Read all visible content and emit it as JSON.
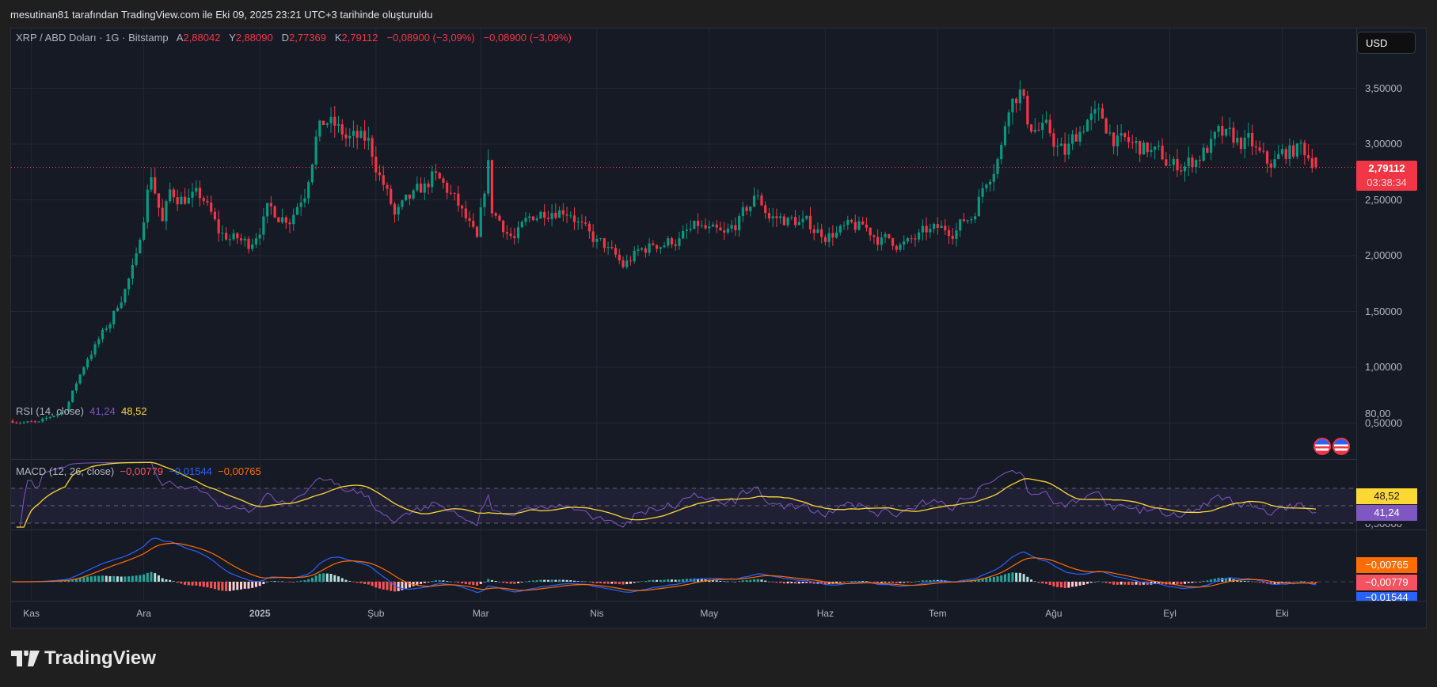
{
  "header": {
    "attribution": "mesutinan81 tarafından TradingView.com ile Eki 09, 2025 23:21 UTC+3 tarihinde oluşturuldu"
  },
  "legend": {
    "symbol": "XRP / ABD Doları · 1G · Bitstamp",
    "o_label": "A",
    "o": "2,88042",
    "h_label": "Y",
    "h": "2,88090",
    "l_label": "D",
    "l": "2,77369",
    "c_label": "K",
    "c": "2,79112",
    "change": "−0,08900 (−3,09%)",
    "change2": "−0,08900 (−3,09%)"
  },
  "currency_button": "USD",
  "price_axis": [
    "3,50000",
    "3,00000",
    "2,50000",
    "2,00000",
    "1,50000",
    "1,00000",
    "0,50000"
  ],
  "price_tag": {
    "price": "2,79112",
    "countdown": "03:38:34"
  },
  "rsi": {
    "title": "RSI (14, close)",
    "value": "41,24",
    "ma": "48,52",
    "axis": "80,00"
  },
  "macd": {
    "title": "MACD (12, 26, close)",
    "hist": "−0,00779",
    "macd": "−0,01544",
    "signal": "−0,00765",
    "axis_clipped": "0,50000"
  },
  "time_axis": [
    "Kas",
    "Ara",
    "2025",
    "Şub",
    "Mar",
    "Nis",
    "May",
    "Haz",
    "Tem",
    "Ağu",
    "Eyl",
    "Eki"
  ],
  "brand": "TradingView",
  "colors": {
    "up": "#089981",
    "down": "#f23645",
    "rsi": "#7e57c2",
    "rsi_ma": "#fdd835",
    "macd": "#2962ff",
    "signal": "#ff6d00"
  },
  "chart_data": {
    "type": "candlestick",
    "title": "XRP / ABD Doları · 1G · Bitstamp",
    "ylim": [
      0.3,
      3.85
    ],
    "month_start_day": [
      5,
      35,
      66,
      97,
      125,
      156,
      186,
      217,
      247,
      278,
      309,
      339
    ],
    "close_anchors": [
      [
        0,
        0.52
      ],
      [
        7,
        0.5
      ],
      [
        14,
        0.62
      ],
      [
        20,
        1.09
      ],
      [
        26,
        1.4
      ],
      [
        33,
        1.95
      ],
      [
        36,
        2.6
      ],
      [
        37,
        2.75
      ],
      [
        40,
        2.3
      ],
      [
        42,
        2.55
      ],
      [
        51,
        2.5
      ],
      [
        55,
        2.2
      ],
      [
        63,
        2.1
      ],
      [
        68,
        2.4
      ],
      [
        74,
        2.35
      ],
      [
        78,
        2.6
      ],
      [
        81,
        3.1
      ],
      [
        84,
        3.2
      ],
      [
        89,
        3.05
      ],
      [
        95,
        3.0
      ],
      [
        99,
        2.65
      ],
      [
        102,
        2.35
      ],
      [
        110,
        2.6
      ],
      [
        112,
        2.7
      ],
      [
        117,
        2.55
      ],
      [
        122,
        2.25
      ],
      [
        124,
        2.1
      ],
      [
        127,
        2.8
      ],
      [
        128,
        2.4
      ],
      [
        134,
        2.15
      ],
      [
        139,
        2.35
      ],
      [
        144,
        2.45
      ],
      [
        149,
        2.42
      ],
      [
        154,
        2.15
      ],
      [
        158,
        2.08
      ],
      [
        163,
        1.9
      ],
      [
        166,
        2.0
      ],
      [
        171,
        2.1
      ],
      [
        178,
        2.15
      ],
      [
        183,
        2.25
      ],
      [
        190,
        2.15
      ],
      [
        195,
        2.35
      ],
      [
        199,
        2.55
      ],
      [
        202,
        2.35
      ],
      [
        210,
        2.3
      ],
      [
        217,
        2.2
      ],
      [
        227,
        2.25
      ],
      [
        232,
        2.15
      ],
      [
        239,
        2.1
      ],
      [
        244,
        2.2
      ],
      [
        251,
        2.25
      ],
      [
        256,
        2.35
      ],
      [
        260,
        2.7
      ],
      [
        264,
        2.98
      ],
      [
        266,
        3.4
      ],
      [
        269,
        3.5
      ],
      [
        271,
        3.2
      ],
      [
        276,
        3.1
      ],
      [
        281,
        2.9
      ],
      [
        287,
        3.25
      ],
      [
        291,
        3.2
      ],
      [
        296,
        3.0
      ],
      [
        303,
        2.95
      ],
      [
        310,
        2.8
      ],
      [
        315,
        2.85
      ],
      [
        322,
        3.05
      ],
      [
        330,
        3.0
      ],
      [
        335,
        2.8
      ],
      [
        340,
        2.92
      ],
      [
        344,
        2.96
      ],
      [
        347,
        2.88
      ]
    ],
    "last_candle": {
      "open": 2.88042,
      "high": 2.8809,
      "low": 2.77369,
      "close": 2.79112
    }
  }
}
